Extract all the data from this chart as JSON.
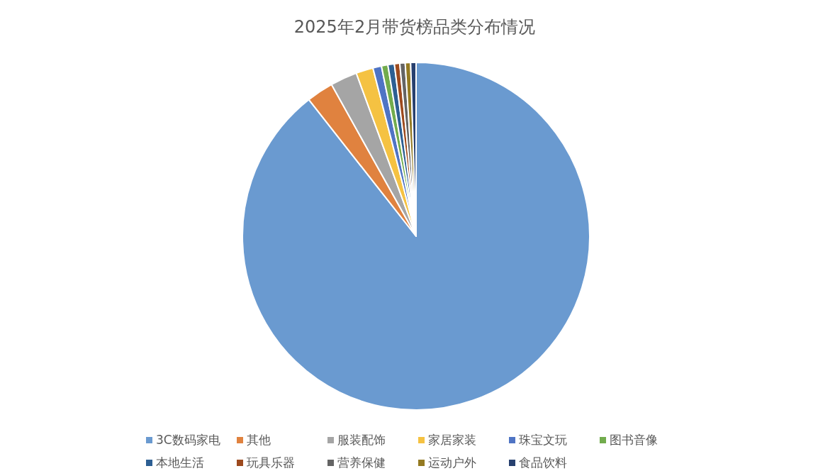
{
  "chart_data": {
    "type": "pie",
    "title": "2025年2月带货榜品类分布情况",
    "categories": [
      "3C数码家电",
      "其他",
      "服装配饰",
      "家居家装",
      "珠宝文玩",
      "图书音像",
      "本地生活",
      "玩具乐器",
      "营养保健",
      "运动户外",
      "食品饮料"
    ],
    "values": [
      89.4,
      2.5,
      2.5,
      1.6,
      0.8,
      0.6,
      0.6,
      0.5,
      0.5,
      0.5,
      0.5
    ],
    "colors": [
      "#6a9ad0",
      "#e0823f",
      "#a5a5a5",
      "#f5c242",
      "#4f74c4",
      "#72ac4d",
      "#2d5f93",
      "#9d4a1e",
      "#646464",
      "#947a22",
      "#27406f"
    ],
    "legend": "bottom"
  }
}
